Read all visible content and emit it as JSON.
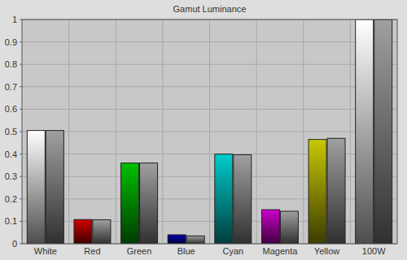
{
  "chart_data": {
    "type": "bar",
    "title": "Gamut Luminance",
    "categories": [
      "White",
      "Red",
      "Green",
      "Blue",
      "Cyan",
      "Magenta",
      "Yellow",
      "100W"
    ],
    "series": [
      {
        "colors": [
          "#ffffff",
          "#d00000",
          "#00c000",
          "#0000b0",
          "#00cccc",
          "#cc00cc",
          "#c8c800",
          "#ffffff"
        ],
        "values": [
          0.505,
          0.108,
          0.36,
          0.04,
          0.4,
          0.152,
          0.465,
          1
        ]
      },
      {
        "color": "#a0a0a0",
        "values": [
          0.505,
          0.107,
          0.36,
          0.035,
          0.397,
          0.145,
          0.47,
          1
        ]
      }
    ],
    "ylim": [
      0,
      1
    ],
    "yticks": [
      0,
      0.1,
      0.2,
      0.3,
      0.4,
      0.5,
      0.6,
      0.7,
      0.8,
      0.9,
      1
    ],
    "grid": true
  }
}
